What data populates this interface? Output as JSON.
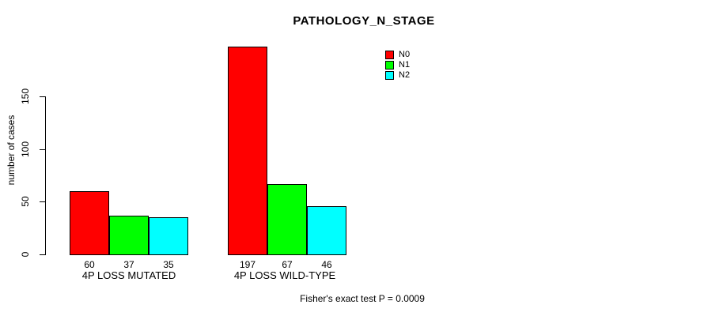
{
  "chart_data": {
    "type": "bar",
    "title": "PATHOLOGY_N_STAGE",
    "ylabel": "number of cases",
    "xlabel": "",
    "categories": [
      "4P LOSS MUTATED",
      "4P LOSS WILD-TYPE"
    ],
    "series": [
      {
        "name": "N0",
        "color": "#ff0000",
        "values": [
          60,
          197
        ]
      },
      {
        "name": "N1",
        "color": "#00ff00",
        "values": [
          37,
          67
        ]
      },
      {
        "name": "N2",
        "color": "#00ffff",
        "values": [
          35,
          46
        ]
      }
    ],
    "bar_value_labels": [
      [
        60,
        37,
        35
      ],
      [
        197,
        67,
        46
      ]
    ],
    "yticks": [
      0,
      50,
      100,
      150
    ],
    "ylim": [
      0,
      200
    ],
    "grid": false,
    "legend_position": "top-right-inside",
    "bar_border_color": "#000000",
    "annotation": "Fisher's exact test P = 0.0009"
  }
}
